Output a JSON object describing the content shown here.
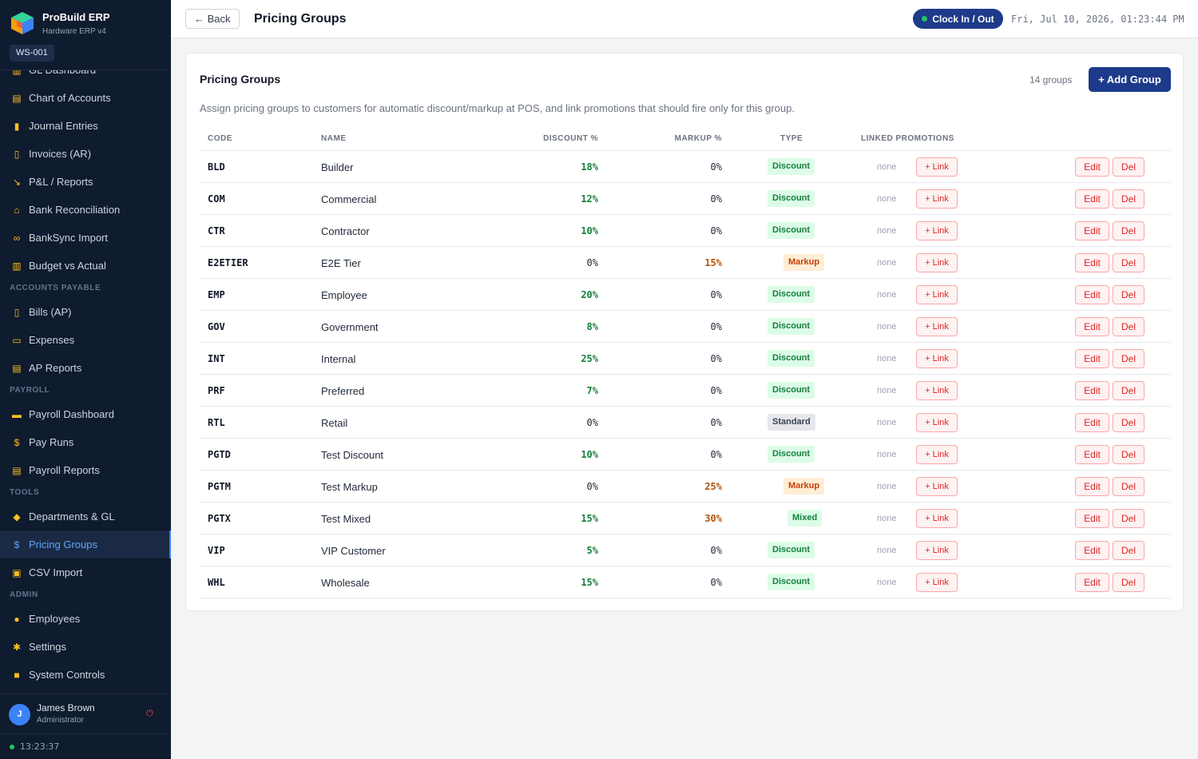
{
  "app": {
    "name": "ProBuild ERP",
    "subtitle": "Hardware ERP v4",
    "workstation": "WS-001"
  },
  "sidebar": {
    "items": [
      {
        "label": "GL Dashboard",
        "icon": "bar-chart-icon",
        "glyph": "▥"
      },
      {
        "label": "Chart of Accounts",
        "icon": "ledger-icon",
        "glyph": "▤"
      },
      {
        "label": "Journal Entries",
        "icon": "notebook-icon",
        "glyph": "▮"
      },
      {
        "label": "Invoices (AR)",
        "icon": "document-icon",
        "glyph": "▯"
      },
      {
        "label": "P&L / Reports",
        "icon": "trend-down-chart-icon",
        "glyph": "↘"
      },
      {
        "label": "Bank Reconciliation",
        "icon": "bank-icon",
        "glyph": "⌂"
      },
      {
        "label": "BankSync Import",
        "icon": "link-icon",
        "glyph": "∞"
      },
      {
        "label": "Budget vs Actual",
        "icon": "bar-chart-icon",
        "glyph": "▥"
      }
    ],
    "sections": [
      {
        "title": "ACCOUNTS PAYABLE",
        "items": [
          {
            "label": "Bills (AP)",
            "icon": "document-icon",
            "glyph": "▯"
          },
          {
            "label": "Expenses",
            "icon": "credit-card-icon",
            "glyph": "▭"
          },
          {
            "label": "AP Reports",
            "icon": "report-icon",
            "glyph": "▤"
          }
        ]
      },
      {
        "title": "PAYROLL",
        "items": [
          {
            "label": "Payroll Dashboard",
            "icon": "money-icon",
            "glyph": "▬"
          },
          {
            "label": "Pay Runs",
            "icon": "dollar-icon",
            "glyph": "$"
          },
          {
            "label": "Payroll Reports",
            "icon": "report-icon",
            "glyph": "▤"
          }
        ]
      },
      {
        "title": "TOOLS",
        "items": [
          {
            "label": "Departments & GL",
            "icon": "tag-icon",
            "glyph": "◆"
          },
          {
            "label": "Pricing Groups",
            "icon": "dollar-icon",
            "glyph": "$",
            "active": true
          },
          {
            "label": "CSV Import",
            "icon": "inbox-icon",
            "glyph": "▣"
          }
        ]
      },
      {
        "title": "ADMIN",
        "items": [
          {
            "label": "Employees",
            "icon": "user-icon",
            "glyph": "●"
          },
          {
            "label": "Settings",
            "icon": "gear-icon",
            "glyph": "✱"
          },
          {
            "label": "System Controls",
            "icon": "lock-icon",
            "glyph": "■"
          }
        ]
      }
    ]
  },
  "user": {
    "initial": "J",
    "name": "James Brown",
    "role": "Administrator"
  },
  "clock": {
    "time": "13:23:37"
  },
  "topbar": {
    "back_label": "← Back",
    "title": "Pricing Groups",
    "clock_button": "Clock In / Out",
    "datetime": "Fri, Jul 10, 2026, 01:23:44 PM"
  },
  "card": {
    "title": "Pricing Groups",
    "count": "14 groups",
    "add_button": "+ Add Group",
    "description": "Assign pricing groups to customers for automatic discount/markup at POS, and link promotions that should fire only for this group."
  },
  "table": {
    "headers": {
      "code": "CODE",
      "name": "NAME",
      "discount": "DISCOUNT %",
      "markup": "MARKUP %",
      "type": "TYPE",
      "promotions": "LINKED PROMOTIONS"
    },
    "link_label": "+ Link",
    "edit_label": "Edit",
    "del_label": "Del",
    "rows": [
      {
        "code": "BLD",
        "name": "Builder",
        "discount": "18%",
        "markup": "0%",
        "type": "Discount",
        "promotions": "none"
      },
      {
        "code": "COM",
        "name": "Commercial",
        "discount": "12%",
        "markup": "0%",
        "type": "Discount",
        "promotions": "none"
      },
      {
        "code": "CTR",
        "name": "Contractor",
        "discount": "10%",
        "markup": "0%",
        "type": "Discount",
        "promotions": "none"
      },
      {
        "code": "E2ETIER",
        "name": "E2E Tier",
        "discount": "0%",
        "markup": "15%",
        "type": "Markup",
        "promotions": "none"
      },
      {
        "code": "EMP",
        "name": "Employee",
        "discount": "20%",
        "markup": "0%",
        "type": "Discount",
        "promotions": "none"
      },
      {
        "code": "GOV",
        "name": "Government",
        "discount": "8%",
        "markup": "0%",
        "type": "Discount",
        "promotions": "none"
      },
      {
        "code": "INT",
        "name": "Internal",
        "discount": "25%",
        "markup": "0%",
        "type": "Discount",
        "promotions": "none"
      },
      {
        "code": "PRF",
        "name": "Preferred",
        "discount": "7%",
        "markup": "0%",
        "type": "Discount",
        "promotions": "none"
      },
      {
        "code": "RTL",
        "name": "Retail",
        "discount": "0%",
        "markup": "0%",
        "type": "Standard",
        "promotions": "none"
      },
      {
        "code": "PGTD",
        "name": "Test Discount",
        "discount": "10%",
        "markup": "0%",
        "type": "Discount",
        "promotions": "none"
      },
      {
        "code": "PGTM",
        "name": "Test Markup",
        "discount": "0%",
        "markup": "25%",
        "type": "Markup",
        "promotions": "none"
      },
      {
        "code": "PGTX",
        "name": "Test Mixed",
        "discount": "15%",
        "markup": "30%",
        "type": "Mixed",
        "promotions": "none"
      },
      {
        "code": "VIP",
        "name": "VIP Customer",
        "discount": "5%",
        "markup": "0%",
        "type": "Discount",
        "promotions": "none"
      },
      {
        "code": "WHL",
        "name": "Wholesale",
        "discount": "15%",
        "markup": "0%",
        "type": "Discount",
        "promotions": "none"
      }
    ]
  },
  "colors": {
    "sidebar_bg": "#0f1b2e",
    "accent": "#1e3a8a",
    "active_link": "#60a5fa",
    "positive": "#15803d",
    "markup": "#b45309",
    "danger": "#dc2626"
  }
}
